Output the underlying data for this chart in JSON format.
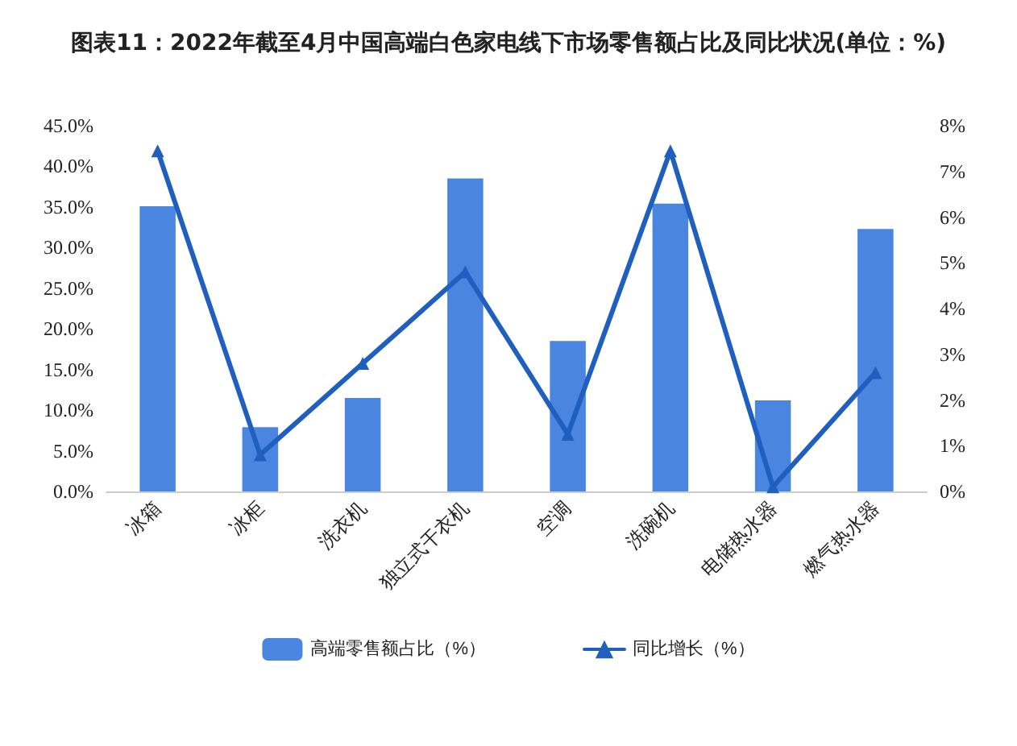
{
  "chart_data": {
    "type": "bar",
    "title": "图表11：2022年截至4月中国高端白色家电线下市场零售额占比及同比状况(单位：%)",
    "categories": [
      "冰箱",
      "冰柜",
      "洗衣机",
      "独立式干衣机",
      "空调",
      "洗碗机",
      "电储热水器",
      "燃气热水器"
    ],
    "series": [
      {
        "name": "高端零售额占比（%）",
        "color": "#4a86e0",
        "values": [
          35.1,
          7.9,
          11.5,
          38.5,
          18.5,
          35.4,
          11.2,
          32.3
        ]
      },
      {
        "name": "同比增长（%）",
        "type": "line",
        "axis": "y2",
        "color": "#1f5fbf",
        "marker": "triangle",
        "values": [
          7.45,
          0.8,
          2.8,
          4.8,
          1.25,
          7.45,
          0.1,
          2.6
        ]
      }
    ],
    "ylim": [
      0,
      45
    ],
    "yticks": [
      {
        "value": 0,
        "label": "0.0%"
      },
      {
        "value": 5,
        "label": "5.0%"
      },
      {
        "value": 10,
        "label": "10.0%"
      },
      {
        "value": 15,
        "label": "15.0%"
      },
      {
        "value": 20,
        "label": "20.0%"
      },
      {
        "value": 25,
        "label": "25.0%"
      },
      {
        "value": 30,
        "label": "30.0%"
      },
      {
        "value": 35,
        "label": "35.0%"
      },
      {
        "value": 40,
        "label": "40.0%"
      },
      {
        "value": 45,
        "label": "45.0%"
      }
    ],
    "y2lim": [
      0,
      8
    ],
    "y2ticks": [
      {
        "value": 0,
        "label": "0%"
      },
      {
        "value": 1,
        "label": "1%"
      },
      {
        "value": 2,
        "label": "2%"
      },
      {
        "value": 3,
        "label": "3%"
      },
      {
        "value": 4,
        "label": "4%"
      },
      {
        "value": 5,
        "label": "5%"
      },
      {
        "value": 6,
        "label": "6%"
      },
      {
        "value": 7,
        "label": "7%"
      },
      {
        "value": 8,
        "label": "8%"
      }
    ],
    "grid": false,
    "legend": "bottom"
  }
}
